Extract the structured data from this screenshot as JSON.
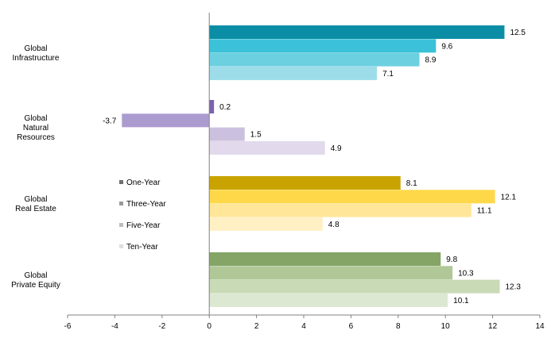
{
  "chart_data": {
    "type": "bar",
    "orientation": "horizontal",
    "categories": [
      "Global Infrastructure",
      "Global Natural Resources",
      "Global Real Estate",
      "Global Private Equity"
    ],
    "category_label_lines": [
      [
        "Global",
        "Infrastructure"
      ],
      [
        "Global",
        "Natural",
        "Resources"
      ],
      [
        "Global",
        "Real Estate"
      ],
      [
        "Global",
        "Private Equity"
      ]
    ],
    "series": [
      {
        "name": "One-Year",
        "values": [
          12.5,
          0.2,
          8.1,
          9.8
        ]
      },
      {
        "name": "Three-Year",
        "values": [
          9.6,
          -3.7,
          12.1,
          10.3
        ]
      },
      {
        "name": "Five-Year",
        "values": [
          8.9,
          1.5,
          11.1,
          12.3
        ]
      },
      {
        "name": "Ten-Year",
        "values": [
          7.1,
          4.9,
          4.8,
          10.1
        ]
      }
    ],
    "data_labels": [
      [
        "12.5",
        "0.2",
        "8.1",
        "9.8"
      ],
      [
        "9.6",
        "-3.7",
        "12.1",
        "10.3"
      ],
      [
        "8.9",
        "1.5",
        "11.1",
        "12.3"
      ],
      [
        "7.1",
        "4.9",
        "4.8",
        "10.1"
      ]
    ],
    "colors": [
      [
        "#0b8ea5",
        "#3bc2d9",
        "#6cd0e0",
        "#9ddde9"
      ],
      [
        "#7b64ac",
        "#ab9bcf",
        "#ccc0df",
        "#e2d9ec"
      ],
      [
        "#c9a400",
        "#ffd84a",
        "#ffe699",
        "#fff1c4"
      ],
      [
        "#84a566",
        "#b0c897",
        "#c9dab6",
        "#dde8d2"
      ]
    ],
    "legend_colors": [
      "#707070",
      "#9a9a9a",
      "#bdbdbd",
      "#dedede"
    ],
    "xlim": [
      -6,
      14
    ],
    "xticks": [
      -6,
      -4,
      -2,
      0,
      2,
      4,
      6,
      8,
      10,
      12,
      14
    ],
    "xtick_labels": [
      "-6",
      "-4",
      "-2",
      "0",
      "2",
      "4",
      "6",
      "8",
      "10",
      "12",
      "14"
    ],
    "title": "",
    "xlabel": "",
    "ylabel": "",
    "grid": false,
    "legend_position": "center-left"
  }
}
